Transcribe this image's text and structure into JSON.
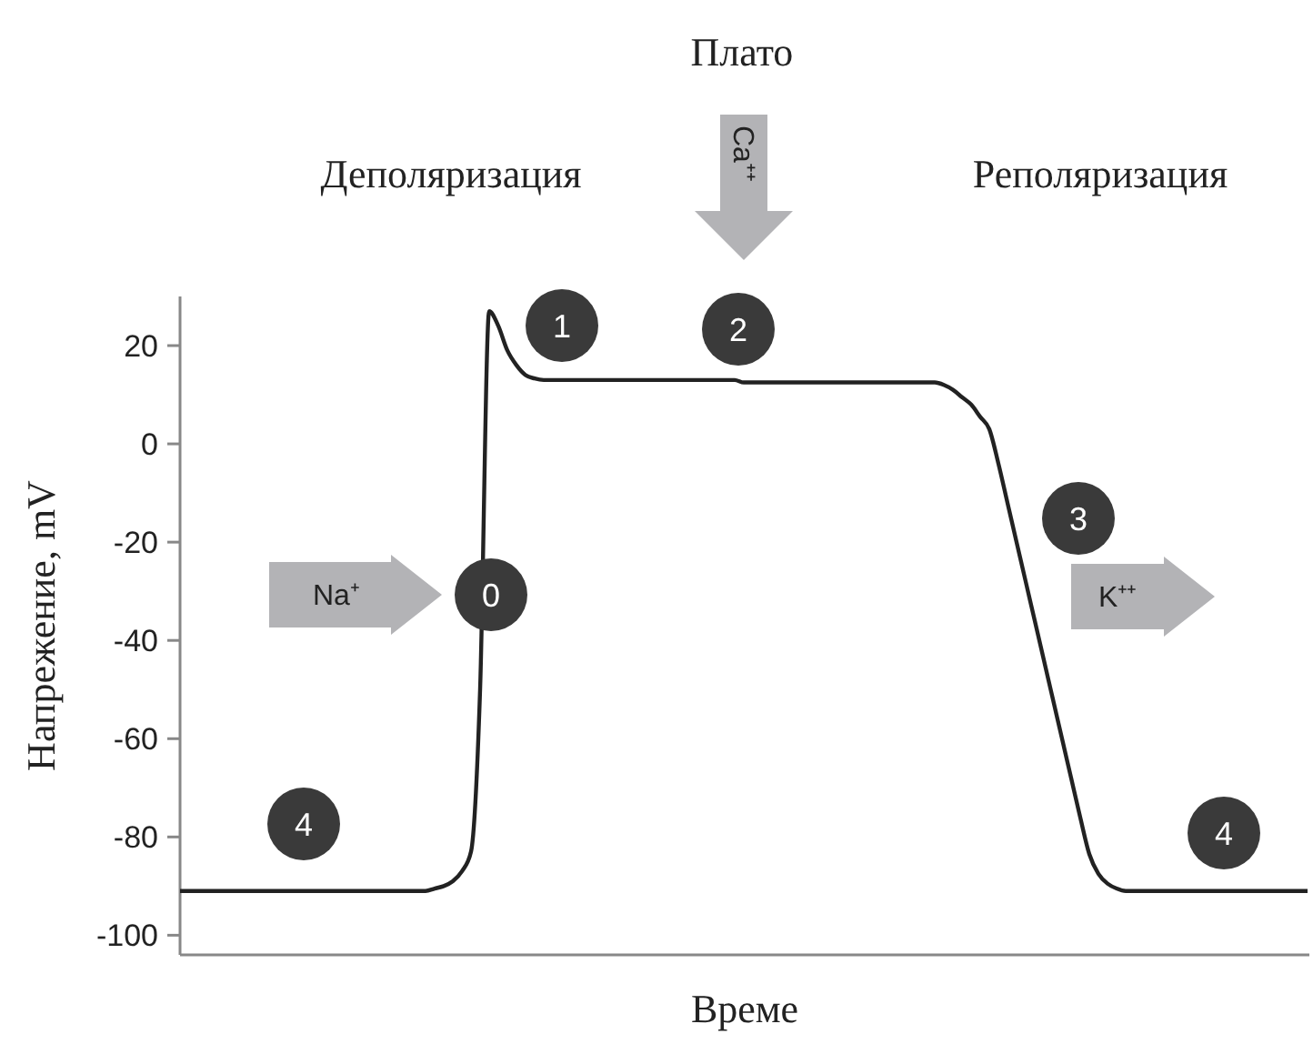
{
  "chart_data": {
    "type": "line",
    "xlabel": "Време",
    "ylabel": "Напрежение, mV",
    "categories": [
      null,
      null,
      null,
      null,
      null,
      null,
      null,
      null,
      null,
      null,
      null,
      null,
      null,
      null,
      null,
      null,
      null,
      null,
      null,
      null,
      null,
      null,
      null,
      null,
      null,
      null,
      null,
      null,
      null,
      null,
      null,
      null,
      null,
      null,
      null,
      null,
      null,
      null,
      null,
      null,
      null,
      null,
      null,
      null,
      null,
      null,
      null,
      null,
      null,
      null,
      null,
      null,
      null,
      null,
      null,
      null,
      null,
      null,
      null,
      null,
      null,
      null,
      null,
      null,
      null,
      null,
      null,
      null,
      null,
      null,
      null,
      null,
      null,
      null,
      null,
      null,
      null,
      null,
      null,
      null,
      null,
      null,
      null,
      null,
      null,
      null,
      null,
      null,
      null,
      null,
      null,
      null,
      null,
      null,
      null,
      null,
      null,
      null,
      null,
      null,
      null,
      null,
      null,
      null,
      null,
      null,
      null,
      null,
      null,
      null,
      null,
      null,
      null,
      null,
      null,
      null,
      null,
      null,
      null,
      null,
      null,
      null,
      null,
      null,
      null
    ],
    "series": [
      {
        "color": "#222222",
        "values": [
          -91,
          -91,
          -91,
          -91,
          -91,
          -91,
          -91,
          -91,
          -91,
          -91,
          -91,
          -91,
          -91,
          -91,
          -91,
          -91,
          -91,
          -91,
          -91,
          -91,
          -91,
          -91,
          -91,
          -91,
          -91,
          -91,
          -91,
          -91,
          -90.5,
          -90,
          -89,
          -87,
          -83,
          -50,
          27,
          24,
          19,
          16,
          14,
          13.3,
          13,
          13,
          13,
          13,
          13,
          13,
          13,
          13,
          13,
          13,
          13,
          13,
          13,
          13,
          13,
          13,
          13,
          13,
          13,
          13,
          13,
          13,
          12.5,
          12.5,
          12.5,
          12.5,
          12.5,
          12.5,
          12.5,
          12.5,
          12.5,
          12.5,
          12.5,
          12.5,
          12.5,
          12.5,
          12.5,
          12.5,
          12.5,
          12.5,
          12.5,
          12.5,
          12.5,
          12.5,
          12,
          11,
          9.5,
          8,
          5.5,
          3,
          -4,
          -12,
          -20,
          -28,
          -36,
          -44,
          -52,
          -60,
          -68,
          -76,
          -83.5,
          -87.5,
          -89.5,
          -90.5,
          -91,
          -91,
          -91,
          -91,
          -91,
          -91,
          -91,
          -91,
          -91,
          -91,
          -91,
          -91,
          -91,
          -91,
          -91,
          -91,
          -91,
          -91,
          -91,
          -91,
          -91
        ]
      }
    ],
    "ylim": [
      -104,
      30
    ],
    "yticks": [
      -100,
      -80,
      -60,
      -40,
      -20,
      0,
      20
    ],
    "grid": false,
    "marker": "none",
    "line_style": "solid",
    "annotations": [
      "Плато",
      "Деполяризация",
      "Реполяризация",
      "Na⁺",
      "Ca⁺⁺",
      "K⁺⁺",
      "0",
      "1",
      "2",
      "3",
      "4",
      "4"
    ]
  }
}
